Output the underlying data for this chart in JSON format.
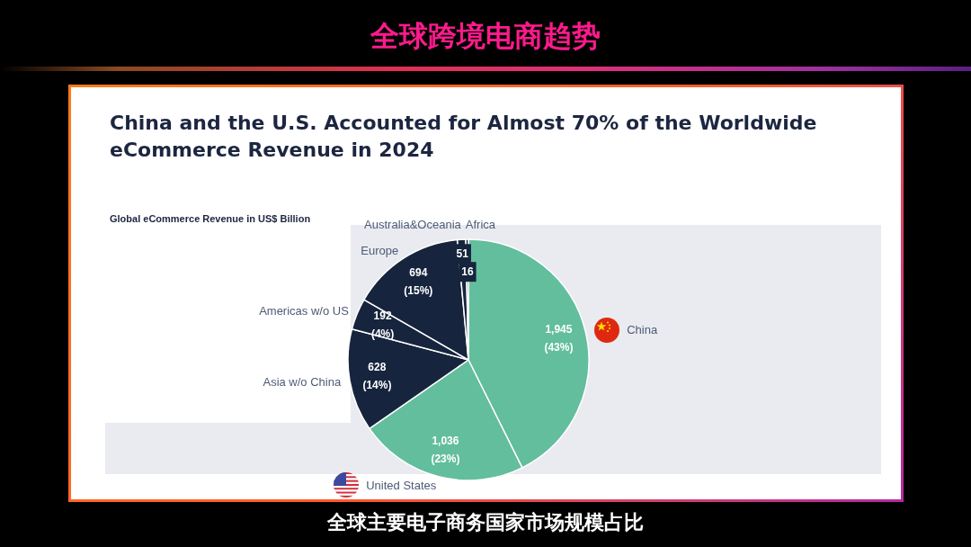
{
  "chart_data": {
    "type": "pie",
    "title": "China and the U.S. Accounted for Almost 70% of the Worldwide eCommerce Revenue in 2024",
    "subtitle": "Global eCommerce Revenue in US$ Billion",
    "annotations": [
      "全球跨境电商趋势",
      "全球主要电子商务国家市场规模占比"
    ],
    "categories": [
      "China",
      "United States",
      "Asia w/o China",
      "Americas w/o US",
      "Europe",
      "Australia&Oceania",
      "Africa"
    ],
    "values": [
      1945,
      1036,
      628,
      192,
      694,
      51,
      16
    ],
    "colors": [
      "#63be9d",
      "#63be9d",
      "#16253d",
      "#16253d",
      "#16253d",
      "#16253d",
      "#16253d"
    ],
    "value_labels": [
      "1,945 (43%)",
      "1,036 (23%)",
      "628 (14%)",
      "192 (4%)",
      "694 (15%)",
      "51",
      "16"
    ],
    "legend": false
  }
}
